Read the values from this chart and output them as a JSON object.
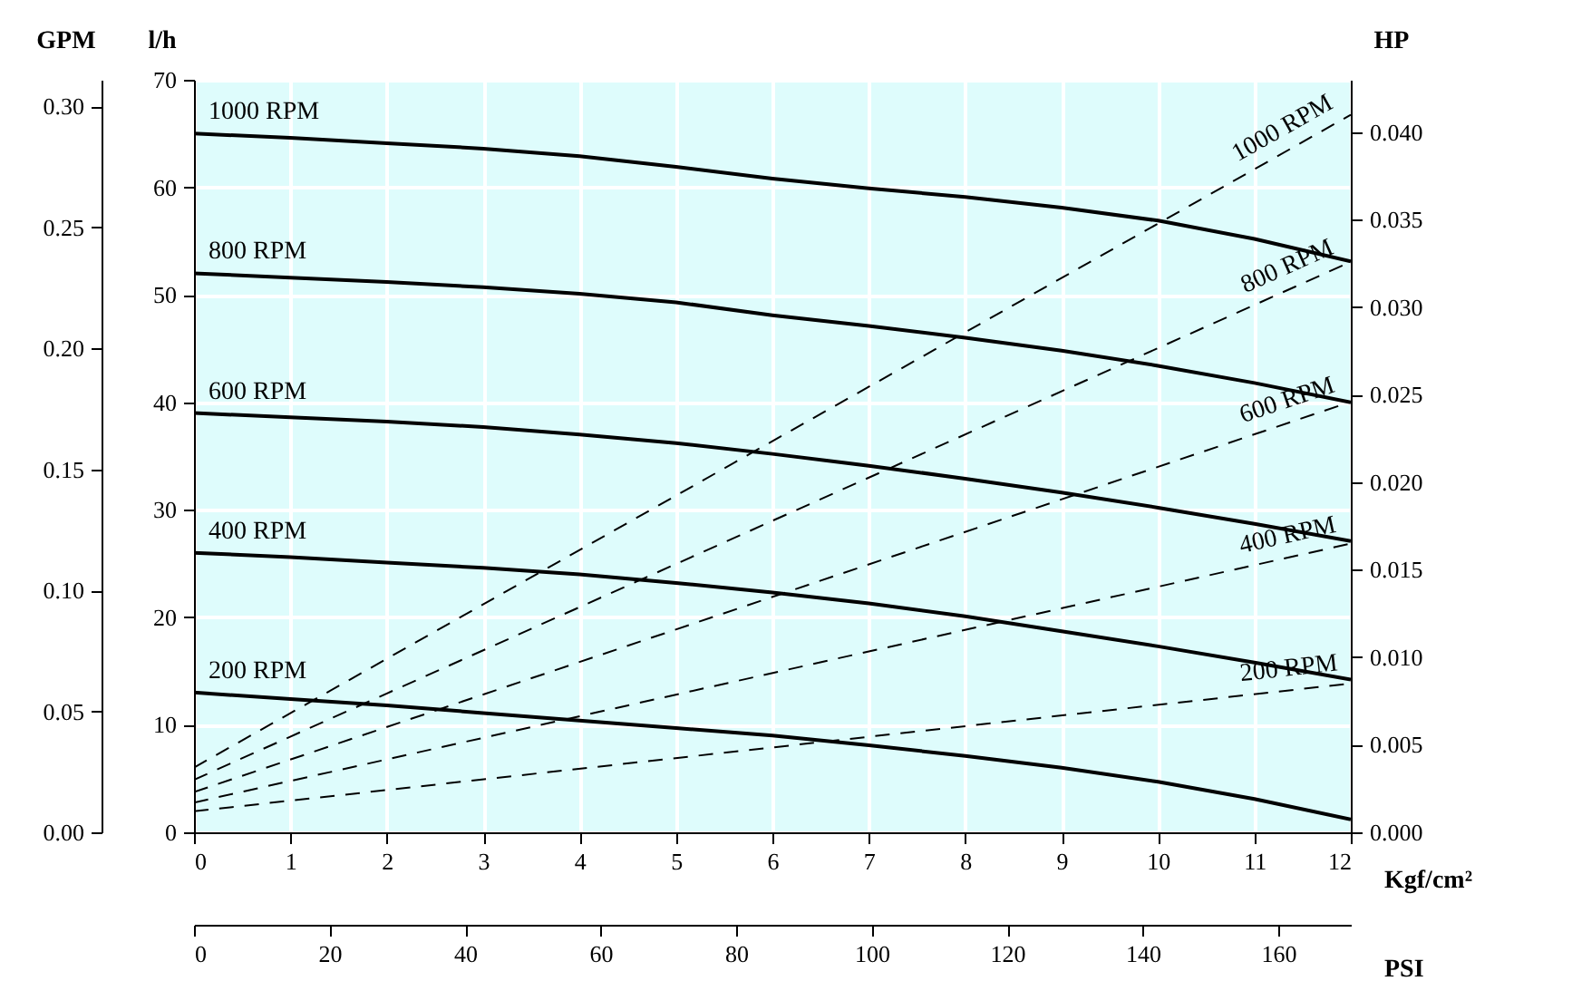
{
  "chart_data": {
    "type": "line",
    "xlabel": "Kgf/cm²",
    "ylabel": "l/h",
    "y2label": "HP",
    "y3label": "GPM",
    "x2label": "PSI",
    "xlim": [
      0,
      12
    ],
    "xticks": [
      0,
      1,
      2,
      3,
      4,
      5,
      6,
      7,
      8,
      9,
      10,
      11,
      12
    ],
    "x2lim": [
      0,
      170.7
    ],
    "x2ticks": [
      0,
      20,
      40,
      60,
      80,
      100,
      120,
      140,
      160
    ],
    "ylim": [
      0,
      70
    ],
    "yticks": [
      0,
      10,
      20,
      30,
      40,
      50,
      60,
      70
    ],
    "y2lim": [
      0,
      0.043
    ],
    "y2ticks": [
      {
        "value": 0,
        "label": "0.000"
      },
      {
        "value": 0.005,
        "label": "0.005"
      },
      {
        "value": 0.01,
        "label": "0.010"
      },
      {
        "value": 0.015,
        "label": "0.015"
      },
      {
        "value": 0.02,
        "label": "0.020"
      },
      {
        "value": 0.025,
        "label": "0.025"
      },
      {
        "value": 0.03,
        "label": "0.030"
      },
      {
        "value": 0.035,
        "label": "0.035"
      },
      {
        "value": 0.04,
        "label": "0.040"
      }
    ],
    "y3lim": [
      0,
      0.311
    ],
    "y3ticks": [
      {
        "value": 0,
        "label": "0.00"
      },
      {
        "value": 0.05,
        "label": "0.05"
      },
      {
        "value": 0.1,
        "label": "0.10"
      },
      {
        "value": 0.15,
        "label": "0.15"
      },
      {
        "value": 0.2,
        "label": "0.20"
      },
      {
        "value": 0.25,
        "label": "0.25"
      },
      {
        "value": 0.3,
        "label": "0.30"
      }
    ],
    "grid": true,
    "series": [
      {
        "name": "1000 RPM",
        "color": "#000000",
        "line_style": "solid",
        "axis": "y",
        "x": [
          0,
          1,
          2,
          3,
          4,
          5,
          6,
          7,
          8,
          9,
          10,
          11,
          12
        ],
        "values": [
          65.0,
          64.6,
          64.1,
          63.6,
          62.9,
          61.9,
          60.8,
          59.9,
          59.1,
          58.1,
          56.9,
          55.2,
          53.1
        ]
      },
      {
        "name": "800 RPM",
        "color": "#000000",
        "line_style": "solid",
        "axis": "y",
        "x": [
          0,
          1,
          2,
          3,
          4,
          5,
          6,
          7,
          8,
          9,
          10,
          11,
          12
        ],
        "values": [
          52.0,
          51.6,
          51.2,
          50.7,
          50.1,
          49.3,
          48.1,
          47.1,
          46.0,
          44.8,
          43.4,
          41.8,
          40.0
        ]
      },
      {
        "name": "600 RPM",
        "color": "#000000",
        "line_style": "solid",
        "axis": "y",
        "x": [
          0,
          1,
          2,
          3,
          4,
          5,
          6,
          7,
          8,
          9,
          10,
          11,
          12
        ],
        "values": [
          39.0,
          38.6,
          38.2,
          37.7,
          37.0,
          36.2,
          35.2,
          34.1,
          32.9,
          31.6,
          30.2,
          28.7,
          27.1
        ]
      },
      {
        "name": "400 RPM",
        "color": "#000000",
        "line_style": "solid",
        "axis": "y",
        "x": [
          0,
          1,
          2,
          3,
          4,
          5,
          6,
          7,
          8,
          9,
          10,
          11,
          12
        ],
        "values": [
          26.0,
          25.6,
          25.1,
          24.6,
          24.0,
          23.2,
          22.3,
          21.3,
          20.1,
          18.7,
          17.3,
          15.8,
          14.2
        ]
      },
      {
        "name": "200 RPM",
        "color": "#000000",
        "line_style": "solid",
        "axis": "y",
        "x": [
          0,
          1,
          2,
          3,
          4,
          5,
          6,
          7,
          8,
          9,
          10,
          11,
          12
        ],
        "values": [
          13.0,
          12.4,
          11.8,
          11.1,
          10.4,
          9.7,
          9.0,
          8.1,
          7.1,
          6.0,
          4.7,
          3.1,
          1.2
        ]
      },
      {
        "name": "1000 RPM",
        "color": "#000000",
        "line_style": "dashed",
        "axis": "y2",
        "x": [
          0,
          12
        ],
        "values": [
          0.0037,
          0.041
        ]
      },
      {
        "name": "800 RPM",
        "color": "#000000",
        "line_style": "dashed",
        "axis": "y2",
        "x": [
          0,
          12
        ],
        "values": [
          0.003,
          0.0326
        ]
      },
      {
        "name": "600 RPM",
        "color": "#000000",
        "line_style": "dashed",
        "axis": "y2",
        "x": [
          0,
          12
        ],
        "values": [
          0.0023,
          0.0246
        ]
      },
      {
        "name": "400 RPM",
        "color": "#000000",
        "line_style": "dashed",
        "axis": "y2",
        "x": [
          0,
          12
        ],
        "values": [
          0.0017,
          0.0165
        ]
      },
      {
        "name": "200 RPM",
        "color": "#000000",
        "line_style": "dashed",
        "axis": "y2",
        "x": [
          0,
          12
        ],
        "values": [
          0.0012,
          0.0085
        ]
      }
    ]
  }
}
